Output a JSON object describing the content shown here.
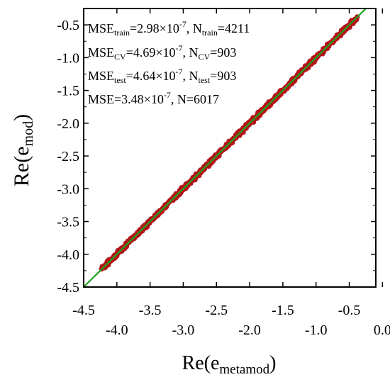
{
  "chart_data": {
    "type": "scatter",
    "ylabel_main": "Re(e",
    "ylabel_sub": "mod",
    "ylabel_close": ")",
    "xlabel_main": "Re(e",
    "xlabel_sub": "metamod",
    "xlabel_close": ")",
    "xlim": [
      -4.5,
      -0.1
    ],
    "ylim": [
      -4.5,
      -0.25
    ],
    "x_ticks_top_row": [
      "-4.5",
      "-3.5",
      "-2.5",
      "-1.5",
      "-0.5"
    ],
    "x_ticks_top_vals": [
      -4.5,
      -3.5,
      -2.5,
      -1.5,
      -0.5
    ],
    "x_ticks_bottom_row": [
      "-4.0",
      "-3.0",
      "-2.0",
      "-1.0",
      "0.0"
    ],
    "x_ticks_bottom_vals": [
      -4.0,
      -3.0,
      -2.0,
      -1.0,
      0.0
    ],
    "y_ticks": [
      "-0.5",
      "-1.0",
      "-1.5",
      "-2.0",
      "-2.5",
      "-3.0",
      "-3.5",
      "-4.0",
      "-4.5"
    ],
    "y_tick_vals": [
      -0.5,
      -1.0,
      -1.5,
      -2.0,
      -2.5,
      -3.0,
      -3.5,
      -4.0,
      -4.5
    ],
    "series": [
      {
        "values_range": [
          -4.22,
          -0.4
        ],
        "color": "#b3141a",
        "marker": "circle"
      },
      {
        "line": "y = x",
        "color": "#1aa61a"
      }
    ],
    "annotations": [
      {
        "pre": "MSE",
        "sub1": "train",
        "mid": "=2.98×10",
        "sup": "-7",
        "post": ", N",
        "sub2": "train",
        "end": "=4211"
      },
      {
        "pre": "MSE",
        "sub1": "CV",
        "mid": "=4.69×10",
        "sup": "-7",
        "post": ", N",
        "sub2": "CV",
        "end": "=903"
      },
      {
        "pre": "MSE",
        "sub1": "test",
        "mid": "=4.64×10",
        "sup": "-7",
        "post": ", N",
        "sub2": "test",
        "end": "=903"
      },
      {
        "pre": "MSE",
        "sub1": "",
        "mid": "=3.48×10",
        "sup": "-7",
        "post": ", N",
        "sub2": "",
        "end": "=6017"
      }
    ],
    "grid": false
  }
}
